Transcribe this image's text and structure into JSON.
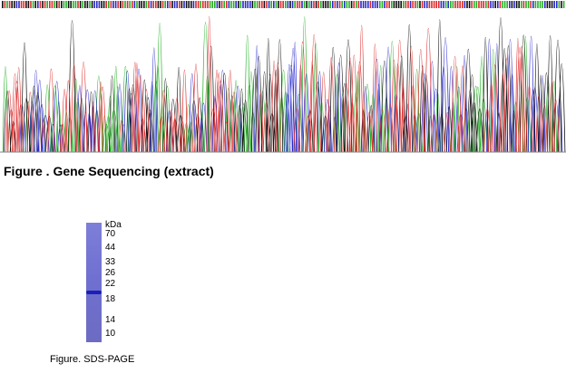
{
  "figure1": {
    "caption": "Figure . Gene Sequencing (extract)"
  },
  "figure2": {
    "unit": "kDa",
    "markers": [
      "70",
      "44",
      "33",
      "26",
      "22",
      "18",
      "14",
      "10"
    ],
    "caption": "Figure. SDS-PAGE"
  }
}
